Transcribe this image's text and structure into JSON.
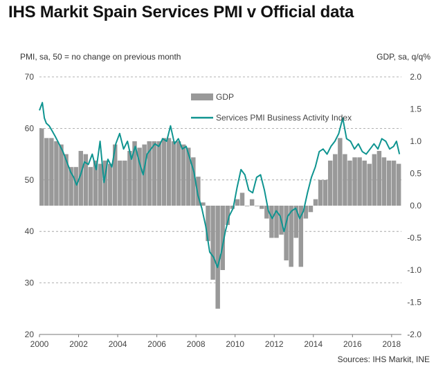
{
  "page": {
    "title": "IHS Markit Spain Services PMI v Official data",
    "left_axis_note": "PMI, sa, 50 = no change on previous month",
    "right_axis_note": "GDP, sa, q/q%",
    "source": "Sources: IHS Markit, INE"
  },
  "chart_data": {
    "type": "bar+line",
    "legend": {
      "placement": "top-center",
      "entries": [
        "GDP",
        "Services PMI Business Activity Index"
      ]
    },
    "colors": {
      "gdp": "#999999",
      "pmi": "#0e9490",
      "grid": "#999999"
    },
    "grid": "dashed horizontal",
    "y_left": {
      "range": [
        20,
        70
      ],
      "ticks": [
        "20",
        "30",
        "40",
        "50",
        "60",
        "70"
      ]
    },
    "y_right": {
      "range": [
        -2.0,
        2.0
      ],
      "ticks": [
        "-2.0",
        "-1.5",
        "-1.0",
        "-0.5",
        "0.0",
        "0.5",
        "1.0",
        "1.5",
        "2.0"
      ]
    },
    "x": {
      "range": [
        2000,
        2018.5
      ],
      "ticks": [
        "2000",
        "2002",
        "2004",
        "2006",
        "2008",
        "2010",
        "2012",
        "2014",
        "2016",
        "2018"
      ]
    },
    "series": [
      {
        "name": "GDP",
        "type": "bar",
        "axis": "right",
        "quarters": [
          "2000Q1",
          "2000Q2",
          "2000Q3",
          "2000Q4",
          "2001Q1",
          "2001Q2",
          "2001Q3",
          "2001Q4",
          "2002Q1",
          "2002Q2",
          "2002Q3",
          "2002Q4",
          "2003Q1",
          "2003Q2",
          "2003Q3",
          "2003Q4",
          "2004Q1",
          "2004Q2",
          "2004Q3",
          "2004Q4",
          "2005Q1",
          "2005Q2",
          "2005Q3",
          "2005Q4",
          "2006Q1",
          "2006Q2",
          "2006Q3",
          "2006Q4",
          "2007Q1",
          "2007Q2",
          "2007Q3",
          "2007Q4",
          "2008Q1",
          "2008Q2",
          "2008Q3",
          "2008Q4",
          "2009Q1",
          "2009Q2",
          "2009Q3",
          "2009Q4",
          "2010Q1",
          "2010Q2",
          "2010Q3",
          "2010Q4",
          "2011Q1",
          "2011Q2",
          "2011Q3",
          "2011Q4",
          "2012Q1",
          "2012Q2",
          "2012Q3",
          "2012Q4",
          "2013Q1",
          "2013Q2",
          "2013Q3",
          "2013Q4",
          "2014Q1",
          "2014Q2",
          "2014Q3",
          "2014Q4",
          "2015Q1",
          "2015Q2",
          "2015Q3",
          "2015Q4",
          "2016Q1",
          "2016Q2",
          "2016Q3",
          "2016Q4",
          "2017Q1",
          "2017Q2",
          "2017Q3",
          "2017Q4",
          "2018Q1",
          "2018Q2"
        ],
        "values": [
          1.2,
          1.05,
          1.05,
          1.0,
          0.95,
          0.8,
          0.6,
          0.6,
          0.85,
          0.8,
          0.6,
          0.7,
          0.65,
          0.7,
          0.65,
          0.95,
          0.7,
          0.7,
          0.85,
          1.0,
          0.9,
          0.95,
          1.0,
          1.0,
          1.0,
          1.05,
          1.05,
          1.0,
          1.0,
          0.95,
          0.9,
          0.75,
          0.45,
          0.05,
          -0.55,
          -1.15,
          -1.6,
          -1.0,
          -0.3,
          -0.05,
          0.1,
          0.2,
          0.0,
          0.1,
          0.0,
          -0.05,
          -0.2,
          -0.5,
          -0.5,
          -0.45,
          -0.85,
          -0.95,
          -0.5,
          -0.95,
          -0.2,
          -0.1,
          0.1,
          0.4,
          0.4,
          0.7,
          0.8,
          1.05,
          0.8,
          0.7,
          0.75,
          0.75,
          0.7,
          0.65,
          0.8,
          0.85,
          0.75,
          0.7,
          0.7,
          0.65
        ]
      },
      {
        "name": "Services PMI Business Activity Index",
        "type": "line",
        "axis": "left",
        "x": [
          2000.0,
          2000.15,
          2000.25,
          2000.35,
          2000.5,
          2000.65,
          2000.8,
          2001.0,
          2001.2,
          2001.4,
          2001.6,
          2001.75,
          2001.9,
          2002.1,
          2002.3,
          2002.5,
          2002.7,
          2002.9,
          2003.1,
          2003.3,
          2003.5,
          2003.7,
          2003.9,
          2004.1,
          2004.3,
          2004.5,
          2004.7,
          2004.9,
          2005.1,
          2005.3,
          2005.5,
          2005.7,
          2005.9,
          2006.1,
          2006.3,
          2006.5,
          2006.7,
          2006.9,
          2007.1,
          2007.3,
          2007.5,
          2007.7,
          2007.9,
          2008.1,
          2008.3,
          2008.5,
          2008.7,
          2008.9,
          2009.1,
          2009.3,
          2009.5,
          2009.7,
          2009.9,
          2010.1,
          2010.3,
          2010.5,
          2010.7,
          2010.9,
          2011.1,
          2011.3,
          2011.5,
          2011.7,
          2011.9,
          2012.1,
          2012.3,
          2012.5,
          2012.7,
          2012.9,
          2013.1,
          2013.3,
          2013.5,
          2013.7,
          2013.9,
          2014.1,
          2014.3,
          2014.5,
          2014.7,
          2014.9,
          2015.1,
          2015.3,
          2015.5,
          2015.7,
          2015.9,
          2016.1,
          2016.3,
          2016.5,
          2016.7,
          2016.9,
          2017.1,
          2017.3,
          2017.5,
          2017.7,
          2017.9,
          2018.1,
          2018.25,
          2018.4
        ],
        "values": [
          63.5,
          65.0,
          62.0,
          61.0,
          60.5,
          59.5,
          58.5,
          57.0,
          55.5,
          53.5,
          51.5,
          50.5,
          49.0,
          51.0,
          53.5,
          53.0,
          55.0,
          52.0,
          57.5,
          49.5,
          54.0,
          52.5,
          57.0,
          59.0,
          56.0,
          57.5,
          54.0,
          56.5,
          53.5,
          51.0,
          55.0,
          56.0,
          57.0,
          56.5,
          58.0,
          57.5,
          60.5,
          57.0,
          58.0,
          56.0,
          56.5,
          54.0,
          51.5,
          47.0,
          44.5,
          41.0,
          36.0,
          35.0,
          33.0,
          36.0,
          40.0,
          43.0,
          44.5,
          48.5,
          52.0,
          51.0,
          48.0,
          47.5,
          50.5,
          51.0,
          48.0,
          44.0,
          42.5,
          44.0,
          43.0,
          40.0,
          43.0,
          44.0,
          44.5,
          42.5,
          44.0,
          47.5,
          50.5,
          52.5,
          55.5,
          56.0,
          55.0,
          56.5,
          57.5,
          59.0,
          62.0,
          58.0,
          57.5,
          56.0,
          57.0,
          55.5,
          55.0,
          56.0,
          57.0,
          56.0,
          58.0,
          57.5,
          56.0,
          56.5,
          57.5,
          55.0
        ]
      }
    ]
  }
}
